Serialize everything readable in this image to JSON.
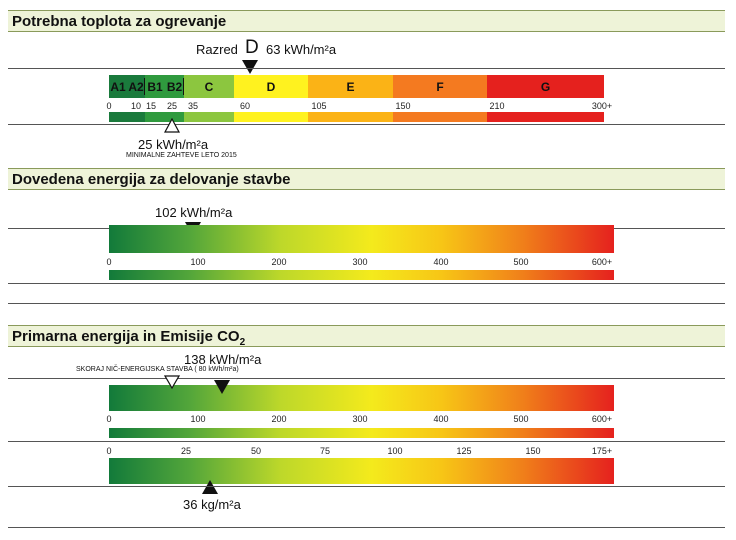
{
  "section1": {
    "title": "Potrebna toplota za ogrevanje",
    "rating_prefix": "Razred",
    "rating_letter": "D",
    "rating_value": "63 kWh/m²a",
    "classes": [
      {
        "label": "A1",
        "color": "#1a7a3c"
      },
      {
        "label": "A2",
        "color": "#1a7a3c"
      },
      {
        "label": "B1",
        "color": "#2f9a3e"
      },
      {
        "label": "B2",
        "color": "#2f9a3e"
      },
      {
        "label": "C",
        "color": "#8cc63f"
      },
      {
        "label": "D",
        "color": "#fff21f"
      },
      {
        "label": "E",
        "color": "#fbb316"
      },
      {
        "label": "F",
        "color": "#f47a20"
      },
      {
        "label": "G",
        "color": "#e5211e"
      }
    ],
    "ticks": [
      "0",
      "10",
      "15",
      "25",
      "35",
      "60",
      "105",
      "150",
      "210",
      "300+"
    ],
    "requirement_value": "25 kWh/m²a",
    "requirement_label": "MINIMALNE ZAHTEVE LETO 2015",
    "actual": 63,
    "requirement": 25
  },
  "section2": {
    "title": "Dovedena energija za delovanje stavbe",
    "value_label": "102 kWh/m²a",
    "value": 102,
    "ticks": [
      "0",
      "100",
      "200",
      "300",
      "400",
      "500",
      "600+"
    ]
  },
  "section3": {
    "title_main": "Primarna energija in Emisije CO",
    "title_sub": "2",
    "value_label": "138 kWh/m²a",
    "value": 138,
    "nzeb_label": "SKORAJ NIČ-ENERGIJSKA STAVBA ( 80 kWh/m²a)",
    "nzeb_value": 80,
    "ticks_energy": [
      "0",
      "100",
      "200",
      "300",
      "400",
      "500",
      "600+"
    ],
    "ticks_co2": [
      "0",
      "25",
      "50",
      "75",
      "100",
      "125",
      "150",
      "175+"
    ],
    "co2_label": "36 kg/m²a",
    "co2_value": 36
  }
}
